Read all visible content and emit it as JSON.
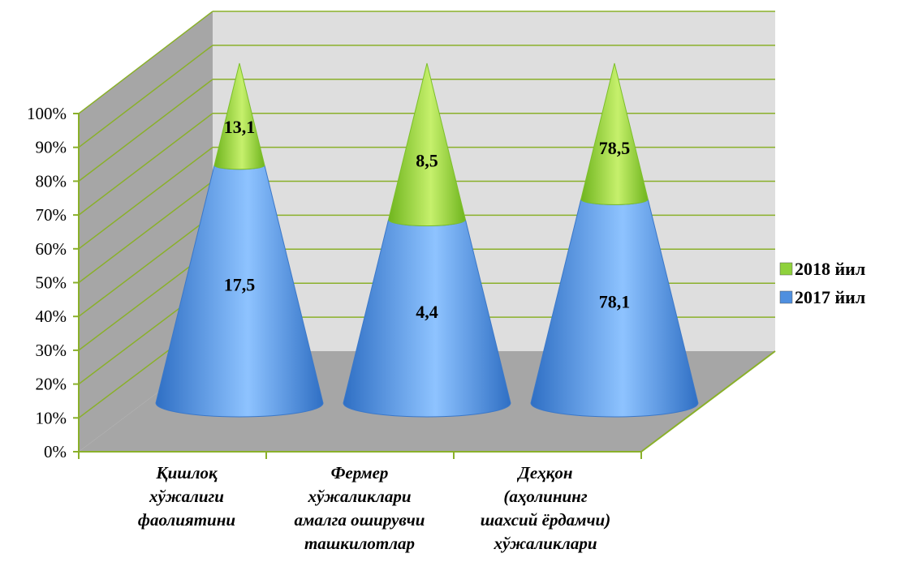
{
  "chart_data": {
    "type": "bar",
    "subtype": "3d-stacked-percent-cone",
    "categories": [
      [
        "Қишлоқ",
        "хўжалиги",
        "фаолиятини"
      ],
      [
        "Фермер",
        "хўжаликлари",
        "амалга оширувчи",
        "ташкилотлар"
      ],
      [
        "Деҳқон",
        "(аҳолининг",
        "шахсий ёрдамчи)",
        "хўжаликлари"
      ]
    ],
    "series": [
      {
        "name": "2017 йил",
        "values": [
          17.5,
          4.4,
          78.1
        ],
        "value_labels": [
          "17,5",
          "4,4",
          "78,1"
        ],
        "share": [
          0.7,
          0.54,
          0.6
        ],
        "color": "#4f8fdf"
      },
      {
        "name": "2018 йил",
        "values": [
          13.1,
          8.5,
          78.5
        ],
        "value_labels": [
          "13,1",
          "8,5",
          "78,5"
        ],
        "share": [
          0.3,
          0.46,
          0.4
        ],
        "color": "#8fd13c"
      }
    ],
    "y_ticks": [
      "0%",
      "10%",
      "20%",
      "30%",
      "40%",
      "50%",
      "60%",
      "70%",
      "80%",
      "90%",
      "100%"
    ],
    "ylim": [
      0,
      100
    ],
    "grid": true,
    "legend_position": "right"
  }
}
